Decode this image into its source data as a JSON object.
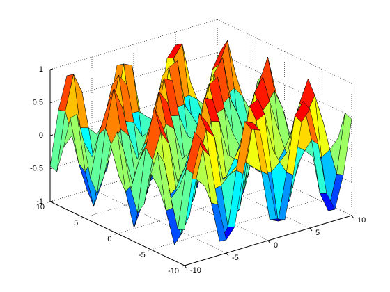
{
  "chart_data": {
    "type": "surface",
    "colormap": "jet",
    "grid": true,
    "x": [
      -10,
      -9,
      -8,
      -7,
      -6,
      -5,
      -4,
      -3,
      -2,
      -1,
      0,
      1,
      2,
      3,
      4,
      5,
      6,
      7,
      8,
      9,
      10
    ],
    "y": [
      -10,
      -9,
      -8,
      -7,
      -6,
      -5,
      -4,
      -3,
      -2,
      -1,
      0,
      1,
      2,
      3,
      4,
      5,
      6,
      7,
      8,
      9,
      10
    ],
    "z": [
      [
        -0.46,
        0.35,
        0.83,
        0.55,
        -0.23,
        -0.8,
        -0.64,
        0.12,
        0.76,
        0.71,
        0,
        -0.71,
        -0.76,
        -0.12,
        0.64,
        0.8,
        0.23,
        -0.55,
        -0.83,
        -0.35,
        0.46
      ],
      [
        -0.5,
        0.38,
        0.9,
        0.6,
        -0.25,
        -0.87,
        -0.69,
        0.13,
        0.83,
        0.77,
        0,
        -0.77,
        -0.83,
        -0.13,
        0.69,
        0.87,
        0.25,
        -0.6,
        -0.9,
        -0.38,
        0.5
      ],
      [
        -0.08,
        0.06,
        0.14,
        0.1,
        -0.04,
        -0.14,
        -0.11,
        0.02,
        0.13,
        0.12,
        0,
        -0.12,
        -0.13,
        -0.02,
        0.11,
        0.14,
        0.04,
        -0.1,
        -0.14,
        -0.06,
        0.08
      ],
      [
        0.41,
        -0.31,
        -0.75,
        -0.5,
        0.21,
        0.72,
        0.57,
        -0.11,
        -0.69,
        -0.63,
        0,
        0.63,
        0.69,
        0.11,
        -0.57,
        -0.72,
        -0.21,
        0.5,
        0.75,
        0.31,
        -0.41
      ],
      [
        0.52,
        -0.4,
        -0.95,
        -0.63,
        0.27,
        0.92,
        0.73,
        -0.14,
        -0.87,
        -0.81,
        0,
        0.81,
        0.87,
        0.14,
        -0.73,
        -0.92,
        -0.27,
        0.63,
        0.95,
        0.4,
        -0.52
      ],
      [
        0.15,
        -0.12,
        -0.28,
        -0.19,
        0.08,
        0.27,
        0.21,
        -0.04,
        -0.26,
        -0.24,
        0,
        0.24,
        0.26,
        0.04,
        -0.21,
        -0.27,
        -0.08,
        0.19,
        0.28,
        0.12,
        -0.15
      ],
      [
        -0.36,
        0.27,
        0.65,
        0.43,
        -0.18,
        -0.63,
        -0.49,
        0.09,
        0.59,
        0.55,
        0,
        -0.55,
        -0.59,
        -0.09,
        0.49,
        0.63,
        0.18,
        -0.43,
        -0.65,
        -0.27,
        0.36
      ],
      [
        -0.54,
        0.41,
        0.98,
        0.65,
        -0.28,
        -0.95,
        -0.75,
        0.14,
        0.9,
        0.83,
        0,
        -0.83,
        -0.9,
        -0.14,
        0.75,
        0.95,
        0.28,
        -0.65,
        -0.98,
        -0.41,
        0.54
      ],
      [
        -0.23,
        0.17,
        0.41,
        0.27,
        -0.12,
        -0.4,
        -0.31,
        0.06,
        0.38,
        0.35,
        0,
        -0.35,
        -0.38,
        -0.06,
        0.31,
        0.4,
        0.12,
        -0.27,
        -0.41,
        -0.17,
        0.23
      ],
      [
        0.29,
        -0.22,
        -0.53,
        -0.35,
        0.15,
        0.52,
        0.41,
        -0.08,
        -0.49,
        -0.45,
        0,
        0.45,
        0.49,
        0.08,
        -0.41,
        -0.52,
        -0.15,
        0.35,
        0.53,
        0.22,
        -0.29
      ],
      [
        0.54,
        -0.41,
        -0.99,
        -0.66,
        0.28,
        0.96,
        0.76,
        -0.14,
        -0.91,
        -0.84,
        0,
        0.84,
        0.91,
        0.14,
        -0.76,
        -0.96,
        -0.28,
        0.66,
        0.99,
        0.41,
        -0.54
      ],
      [
        0.29,
        -0.22,
        -0.53,
        -0.35,
        0.15,
        0.52,
        0.41,
        -0.08,
        -0.49,
        -0.45,
        0,
        0.45,
        0.49,
        0.08,
        -0.41,
        -0.52,
        -0.15,
        0.35,
        0.53,
        0.22,
        -0.29
      ],
      [
        -0.23,
        0.17,
        0.41,
        0.27,
        -0.12,
        -0.4,
        -0.31,
        0.06,
        0.38,
        0.35,
        0,
        -0.35,
        -0.38,
        -0.06,
        0.31,
        0.4,
        0.12,
        -0.27,
        -0.41,
        -0.17,
        0.23
      ],
      [
        -0.54,
        0.41,
        0.98,
        0.65,
        -0.28,
        -0.95,
        -0.75,
        0.14,
        0.9,
        0.83,
        0,
        -0.83,
        -0.9,
        -0.14,
        0.75,
        0.95,
        0.28,
        -0.65,
        -0.98,
        -0.41,
        0.54
      ],
      [
        -0.36,
        0.27,
        0.65,
        0.43,
        -0.18,
        -0.63,
        -0.49,
        0.09,
        0.59,
        0.55,
        0,
        -0.55,
        -0.59,
        -0.09,
        0.49,
        0.63,
        0.18,
        -0.43,
        -0.65,
        -0.27,
        0.36
      ],
      [
        0.15,
        -0.12,
        -0.28,
        -0.19,
        0.08,
        0.27,
        0.21,
        -0.04,
        -0.26,
        -0.24,
        0,
        0.24,
        0.26,
        0.04,
        -0.21,
        -0.27,
        -0.08,
        0.19,
        0.28,
        0.12,
        -0.15
      ],
      [
        0.52,
        -0.4,
        -0.95,
        -0.63,
        0.27,
        0.92,
        0.73,
        -0.14,
        -0.87,
        -0.81,
        0,
        0.81,
        0.87,
        0.14,
        -0.73,
        -0.92,
        -0.27,
        0.63,
        0.95,
        0.4,
        -0.52
      ],
      [
        0.41,
        -0.31,
        -0.75,
        -0.5,
        0.21,
        0.72,
        0.57,
        -0.11,
        -0.69,
        -0.63,
        0,
        0.63,
        0.69,
        0.11,
        -0.57,
        -0.72,
        -0.21,
        0.5,
        0.75,
        0.31,
        -0.41
      ],
      [
        -0.08,
        0.06,
        0.14,
        0.1,
        -0.04,
        -0.14,
        -0.11,
        0.02,
        0.13,
        0.12,
        0,
        -0.12,
        -0.13,
        -0.02,
        0.11,
        0.14,
        0.04,
        -0.1,
        -0.14,
        -0.06,
        0.08
      ],
      [
        -0.5,
        0.38,
        0.9,
        0.6,
        -0.25,
        -0.87,
        -0.69,
        0.13,
        0.83,
        0.77,
        0,
        -0.77,
        -0.83,
        -0.13,
        0.69,
        0.87,
        0.25,
        -0.6,
        -0.9,
        -0.38,
        0.5
      ],
      [
        -0.46,
        0.35,
        0.83,
        0.55,
        -0.23,
        -0.8,
        -0.64,
        0.12,
        0.76,
        0.71,
        0,
        -0.71,
        -0.76,
        -0.12,
        0.64,
        0.8,
        0.23,
        -0.55,
        -0.83,
        -0.35,
        0.46
      ]
    ],
    "xlim": [
      -10,
      10
    ],
    "xticks": [
      -10,
      -5,
      0,
      5,
      10
    ],
    "ylim": [
      -10,
      10
    ],
    "yticks": [
      -10,
      -5,
      0,
      5,
      10
    ],
    "zlim": [
      -1,
      1
    ],
    "zticks": [
      -1,
      -0.5,
      0,
      0.5,
      1
    ]
  }
}
